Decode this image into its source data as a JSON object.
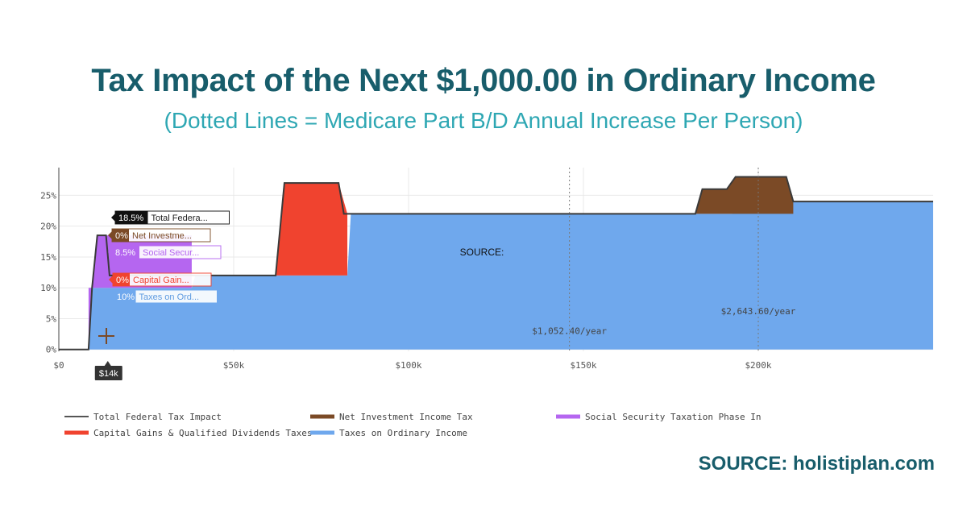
{
  "header": {
    "title": "Tax Impact of the Next $1,000.00 in Ordinary Income",
    "subtitle": "(Dotted Lines = Medicare Part B/D Annual Increase Per Person)"
  },
  "footer": {
    "source": "SOURCE: holistiplan.com"
  },
  "chart_data": {
    "type": "area",
    "title": "Tax Impact of the Next $1,000.00 in Ordinary Income",
    "xlabel": "",
    "ylabel": "",
    "xlim": [
      0,
      250000
    ],
    "ylim": [
      -0.3,
      29.5
    ],
    "xticks": [
      {
        "value": 0,
        "label": "$0"
      },
      {
        "value": 50000,
        "label": "$50k"
      },
      {
        "value": 100000,
        "label": "$100k"
      },
      {
        "value": 150000,
        "label": "$150k"
      },
      {
        "value": 200000,
        "label": "$200k"
      }
    ],
    "yticks": [
      {
        "value": 0,
        "label": "0%"
      },
      {
        "value": 5,
        "label": "5%"
      },
      {
        "value": 10,
        "label": "10%"
      },
      {
        "value": 15,
        "label": "15%"
      },
      {
        "value": 20,
        "label": "20%"
      },
      {
        "value": 25,
        "label": "25%"
      }
    ],
    "series": [
      {
        "name": "Taxes on Ordinary Income",
        "color": "#6fa8ed",
        "x": [
          0,
          8500,
          9500,
          38000,
          39000,
          82500,
          83500,
          181000,
          182000,
          192500,
          193500,
          210000,
          250000
        ],
        "y": [
          0,
          0,
          10,
          10,
          12,
          12,
          22,
          22,
          22,
          22,
          24,
          24,
          24
        ]
      },
      {
        "name": "Social Security Taxation Phase In",
        "color": "#b566f0",
        "x": [
          8500,
          9500,
          11000,
          38000
        ],
        "y": [
          0,
          10,
          18.5,
          18.5
        ]
      },
      {
        "name": "Capital Gains & Qualified Dividends Taxes",
        "color": "#f0432f",
        "x": [
          62000,
          64500,
          80000,
          82500
        ],
        "y": [
          12,
          27,
          27,
          22
        ]
      },
      {
        "name": "Net Investment Income Tax",
        "color": "#7b4a26",
        "x": [
          182000,
          184000,
          191000,
          193500,
          201000,
          208000,
          210000
        ],
        "y": [
          22,
          26,
          26,
          28,
          28,
          28,
          24
        ]
      },
      {
        "name": "Total Federal Tax Impact",
        "color": "#555555",
        "x": [
          0,
          8500,
          9500,
          11000,
          13500,
          14500,
          38000,
          39000,
          62000,
          64500,
          80000,
          81500,
          83500,
          182000,
          184000,
          191000,
          193500,
          208000,
          210000,
          250000
        ],
        "y": [
          0,
          0,
          10,
          18.5,
          18.5,
          12,
          12,
          12,
          12,
          27,
          27,
          22,
          22,
          22,
          26,
          26,
          28,
          28,
          24,
          24
        ]
      }
    ],
    "medicare_lines": [
      {
        "x": 146000,
        "label": "$1,052.40/year",
        "y": 2.5
      },
      {
        "x": 200000,
        "label": "$2,643.60/year",
        "y": 5.7
      }
    ],
    "hover": {
      "x": 14000,
      "x_label": "$14k",
      "items": [
        {
          "value": "18.5%",
          "name": "Total Federa...",
          "color": "#111111",
          "text_color": "#222222"
        },
        {
          "value": "0%",
          "name": "Net Investme...",
          "color": "#7b4a26",
          "text_color": "#7b4a26"
        },
        {
          "value": "8.5%",
          "name": "Social Secur...",
          "color": "#b566f0",
          "text_color": "#b566f0"
        },
        {
          "value": "0%",
          "name": "Capital Gain...",
          "color": "#f0432f",
          "text_color": "#f0432f"
        },
        {
          "value": "10%",
          "name": "Taxes on Ord...",
          "color": "#6fa8ed",
          "text_color": "#5f9be0"
        }
      ]
    },
    "overlay_text": "SOURCE:",
    "legend": [
      {
        "name": "Total Federal Tax Impact",
        "color": "#555555"
      },
      {
        "name": "Net Investment Income Tax",
        "color": "#7b4a26"
      },
      {
        "name": "Social Security Taxation Phase In",
        "color": "#b566f0"
      },
      {
        "name": "Capital Gains & Qualified Dividends Taxes",
        "color": "#f0432f"
      },
      {
        "name": "Taxes on Ordinary Income",
        "color": "#6fa8ed"
      }
    ],
    "legend_position": "bottom"
  }
}
